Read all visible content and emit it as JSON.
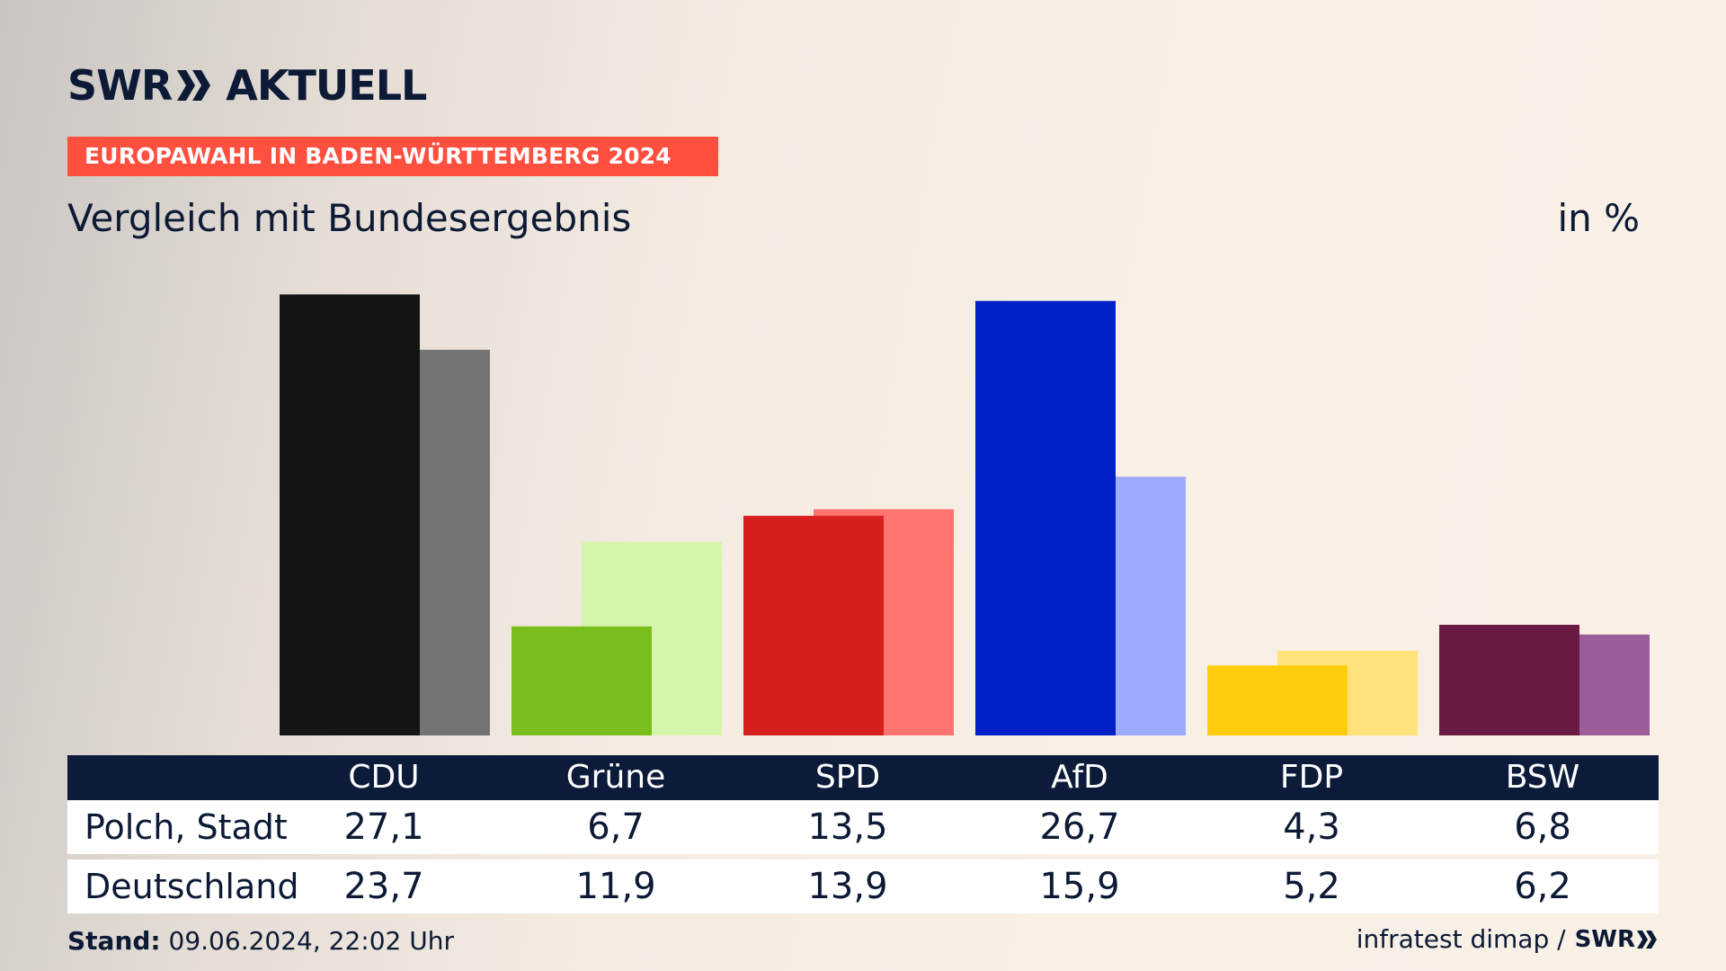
{
  "brand": {
    "logo_text_left": "SWR",
    "logo_text_right": "AKTUELL",
    "small_logo_text": "SWR"
  },
  "banner": "EUROPAWAHL IN BADEN-WÜRTTEMBERG 2024",
  "subtitle": "Vergleich mit Bundesergebnis",
  "unit": "in %",
  "chart_data": {
    "type": "bar",
    "categories": [
      "CDU",
      "Grüne",
      "SPD",
      "AfD",
      "FDP",
      "BSW"
    ],
    "series": [
      {
        "name": "Polch, Stadt",
        "values": [
          27.1,
          6.7,
          13.5,
          26.7,
          4.3,
          6.8
        ]
      },
      {
        "name": "Deutschland",
        "values": [
          23.7,
          11.9,
          13.9,
          15.9,
          5.2,
          6.2
        ]
      }
    ],
    "colors_primary": [
      "#151515",
      "#79be1c",
      "#d71f1f",
      "#0120c8",
      "#ffcd0b",
      "#6a1a42"
    ],
    "colors_secondary": [
      "#737373",
      "#d7f5aa",
      "#ff7470",
      "#9eaafe",
      "#ffe37a",
      "#9b5e9a"
    ],
    "table": {
      "headers": [
        "CDU",
        "Grüne",
        "SPD",
        "AfD",
        "FDP",
        "BSW"
      ],
      "rows": [
        {
          "label": "Polch, Stadt",
          "values": [
            "27,1",
            "6,7",
            "13,5",
            "26,7",
            "4,3",
            "6,8"
          ]
        },
        {
          "label": "Deutschland",
          "values": [
            "23,7",
            "11,9",
            "13,9",
            "15,9",
            "5,2",
            "6,2"
          ]
        }
      ]
    }
  },
  "footer": {
    "stand_label": "Stand:",
    "stand_value": "09.06.2024, 22:02 Uhr",
    "source": "infratest dimap /"
  }
}
